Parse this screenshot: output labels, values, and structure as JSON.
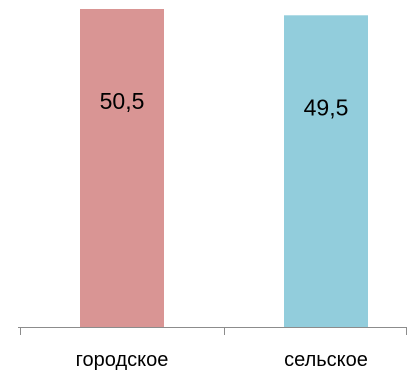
{
  "chart_data": {
    "type": "bar",
    "categories": [
      "городское",
      "сельское"
    ],
    "values": [
      50.5,
      49.5
    ],
    "value_labels": [
      "50,5",
      "49,5"
    ],
    "ylim": [
      0,
      50.5
    ],
    "grid": false,
    "colors": [
      "#d99594",
      "#92cddc"
    ],
    "axis_color": "#8c8c8c"
  }
}
